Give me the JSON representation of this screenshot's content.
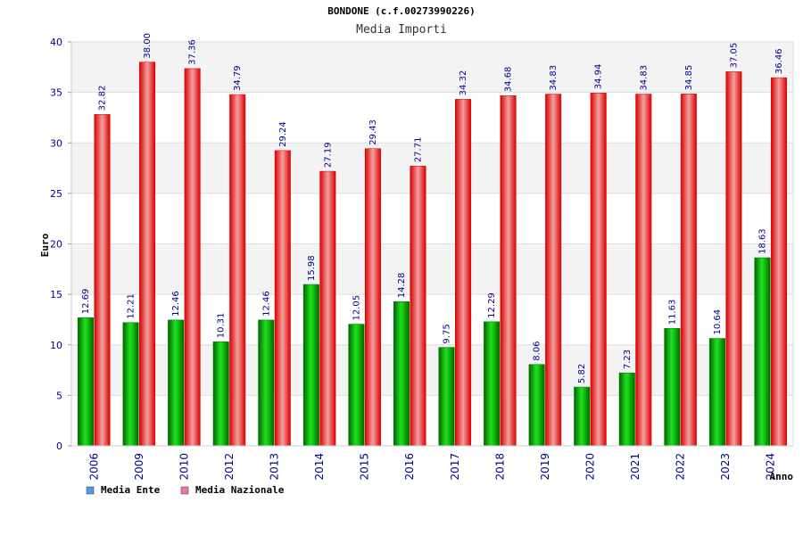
{
  "chart_data": {
    "type": "bar",
    "title": "BONDONE (c.f.00273990226)",
    "subtitle": "Media Importi",
    "ylabel": "Euro",
    "xlabel": "Anno",
    "ylim": [
      0,
      40
    ],
    "yticks": [
      0,
      5,
      10,
      15,
      20,
      25,
      30,
      35,
      40
    ],
    "categories": [
      "2006",
      "2009",
      "2010",
      "2012",
      "2013",
      "2014",
      "2015",
      "2016",
      "2017",
      "2018",
      "2019",
      "2020",
      "2021",
      "2022",
      "2023",
      "2024"
    ],
    "series": [
      {
        "name": "Media Ente",
        "color": "#00aa00",
        "legend_color": "#5599ee",
        "values": [
          12.69,
          12.21,
          12.46,
          10.31,
          12.46,
          15.98,
          12.05,
          14.28,
          9.75,
          12.29,
          8.06,
          5.82,
          7.23,
          11.63,
          10.64,
          18.63
        ],
        "labels": [
          "12.69",
          "12.21",
          "12.46",
          "10.31",
          "12.46",
          "15.98",
          "12.05",
          "14.28",
          "9.75",
          "12.29",
          "8.06",
          "5.82",
          "7.23",
          "11.63",
          "10.64",
          "18.63"
        ]
      },
      {
        "name": "Media Nazionale",
        "color": "#ee0000",
        "legend_color": "#ee77aa",
        "values": [
          32.82,
          38.0,
          37.36,
          34.79,
          29.24,
          27.19,
          29.43,
          27.71,
          34.32,
          34.68,
          34.83,
          34.94,
          34.83,
          34.85,
          37.05,
          36.46
        ],
        "labels": [
          "32.82",
          "38.00",
          "37.36",
          "34.79",
          "29.24",
          "27.19",
          "29.43",
          "27.71",
          "34.32",
          "34.68",
          "34.83",
          "34.94",
          "34.83",
          "34.85",
          "37.05",
          "36.46"
        ]
      }
    ],
    "grid": true,
    "legend_position": "bottom-left"
  }
}
